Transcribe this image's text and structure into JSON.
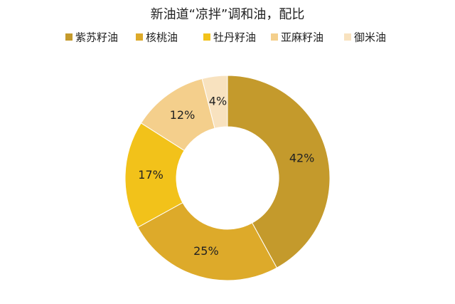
{
  "chart_data": {
    "type": "donut",
    "title": "新油道“凉拌”调和油，配比",
    "categories": [
      "紫苏籽油",
      "核桃油",
      "牡丹籽油",
      "亚麻籽油",
      "御米油"
    ],
    "values": [
      42,
      25,
      17,
      12,
      4
    ],
    "value_labels": [
      "42%",
      "25%",
      "17%",
      "12%",
      "4%"
    ],
    "colors": [
      "#C49A2C",
      "#DDAA2A",
      "#F2C21A",
      "#F4CF8C",
      "#F8E2BF"
    ],
    "legend": "top"
  }
}
